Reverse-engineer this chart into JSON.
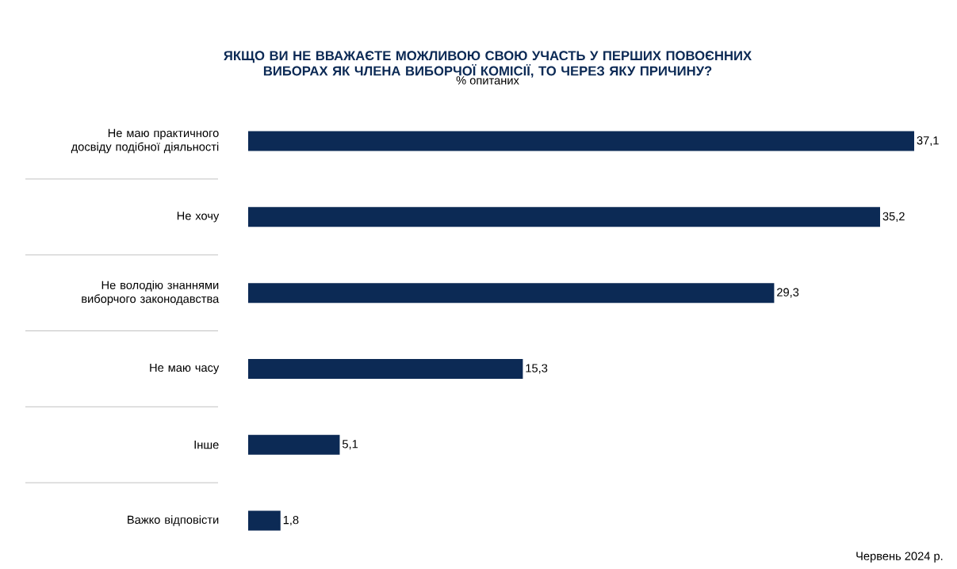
{
  "chart_data": {
    "type": "bar",
    "orientation": "horizontal",
    "title": "ЯКЩО ВИ НЕ ВВАЖАЄТЕ МОЖЛИВОЮ СВОЮ УЧАСТЬ У ПЕРШИХ ПОВОЄННИХ ВИБОРАХ ЯК ЧЛЕНА ВИБОРЧОЇ КОМІСІЇ, ТО ЧЕРЕЗ ЯКУ ПРИЧИНУ?",
    "subtitle": "% опитаних",
    "categories": [
      "Не маю практичного досвіду подібної діяльності",
      "Не хочу",
      "Не володію знаннями виборчого законодавства",
      "Не маю часу",
      "Інше",
      "Важко відповісти"
    ],
    "values": [
      37.1,
      35.2,
      29.3,
      15.3,
      5.1,
      1.8
    ],
    "value_labels": [
      "37,1",
      "35,2",
      "29,3",
      "15,3",
      "5,1",
      "1,8"
    ],
    "color": "#0c2a55",
    "annotations": [
      "Червень 2024 р."
    ]
  }
}
